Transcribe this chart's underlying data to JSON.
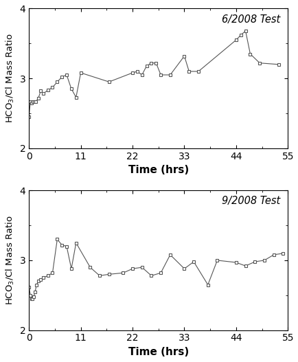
{
  "june_x": [
    0,
    0.3,
    0.6,
    0.9,
    1.2,
    1.5,
    2,
    2.5,
    3,
    4,
    5,
    6,
    7,
    8,
    9,
    10,
    11,
    17,
    22,
    23,
    24,
    25,
    26,
    27,
    28,
    30,
    33,
    34,
    36,
    44,
    45,
    46,
    47,
    49,
    53
  ],
  "june_y": [
    2.45,
    2.67,
    2.65,
    2.67,
    2.67,
    2.67,
    2.72,
    2.82,
    2.78,
    2.83,
    2.87,
    2.95,
    3.02,
    3.05,
    2.85,
    2.73,
    3.08,
    2.95,
    3.08,
    3.1,
    3.05,
    3.18,
    3.22,
    3.22,
    3.05,
    3.05,
    3.32,
    3.1,
    3.1,
    3.55,
    3.62,
    3.68,
    3.35,
    3.22,
    3.2
  ],
  "sep_x": [
    0,
    0.3,
    0.5,
    0.7,
    1,
    1.3,
    1.6,
    2,
    2.5,
    3,
    4,
    5,
    6,
    7,
    8,
    9,
    10,
    13,
    15,
    17,
    20,
    22,
    24,
    26,
    28,
    30,
    33,
    35,
    38,
    40,
    44,
    46,
    48,
    50,
    52,
    54
  ],
  "sep_y": [
    2.62,
    2.5,
    2.45,
    2.45,
    2.48,
    2.55,
    2.65,
    2.7,
    2.72,
    2.75,
    2.78,
    2.82,
    3.3,
    3.22,
    3.2,
    2.88,
    3.25,
    2.9,
    2.78,
    2.8,
    2.82,
    2.88,
    2.9,
    2.78,
    2.82,
    3.08,
    2.88,
    2.98,
    2.65,
    3.0,
    2.97,
    2.92,
    2.98,
    3.0,
    3.08,
    3.1
  ],
  "ylabel": "HCO$_3$/Cl Mass Ratio",
  "xlabel": "Time (hrs)",
  "title1": "6/2008 Test",
  "title2": "9/2008 Test",
  "xlim": [
    0,
    55
  ],
  "ylim": [
    2,
    4
  ],
  "xticks": [
    0,
    11,
    22,
    33,
    44,
    55
  ],
  "yticks": [
    2,
    3,
    4
  ],
  "marker": "s",
  "markersize": 3.5,
  "linecolor": "#555555",
  "bg_color": "white"
}
